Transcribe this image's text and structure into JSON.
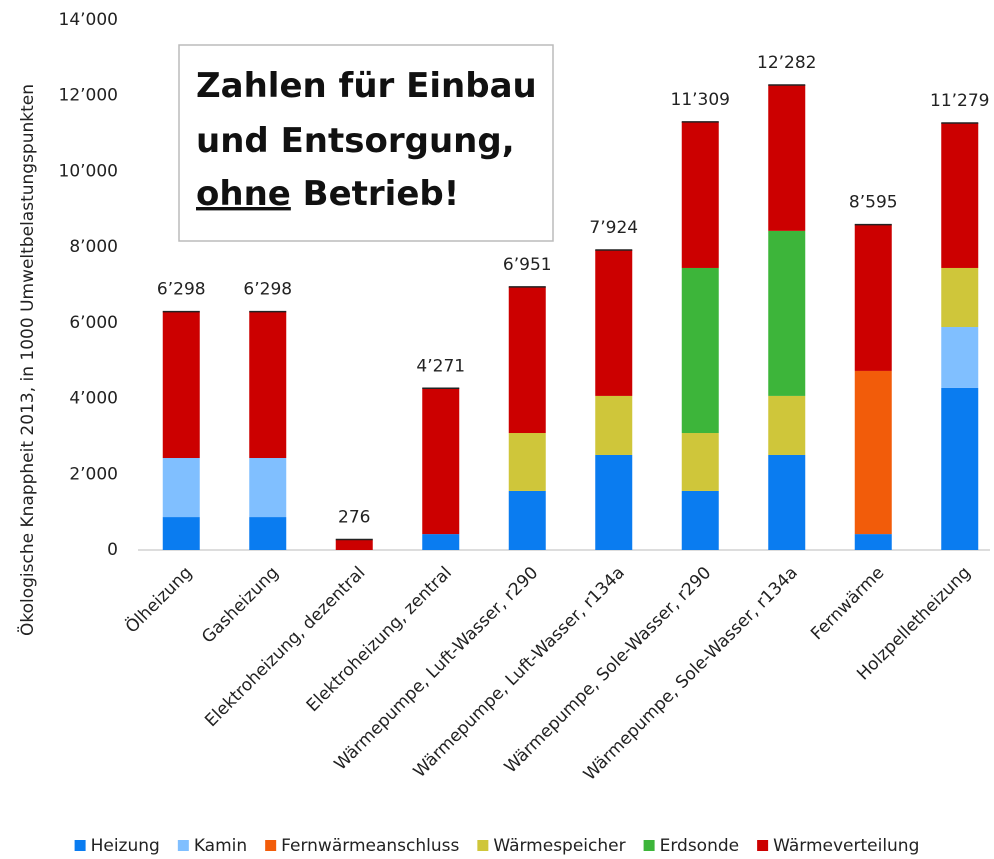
{
  "chart_data": {
    "type": "stacked_bar",
    "y_label": "Ökologische Knappheit 2013, in 1000 Umweltbelastungspunkten",
    "annotation": {
      "lines": [
        "Zahlen für Einbau",
        "und Entsorgung,"
      ],
      "underlined": "ohne",
      "rest": "Betrieb!"
    },
    "categories": [
      "Ölheizung",
      "Gasheizung",
      "Elektroheizung, dezentral",
      "Elektroheizung, zentral",
      "Wärmepumpe, Luft-Wasser, r290",
      "Wärmepumpe, Luft-Wasser, r134a",
      "Wärmepumpe, Sole-Wasser, r290",
      "Wärmepumpe, Sole-Wasser, r134a",
      "Fernwärme",
      "Holzpelletheizung"
    ],
    "series": [
      {
        "name": "Heizung",
        "color": "#0a7cf0",
        "values": [
          870,
          870,
          null,
          420,
          1560,
          2510,
          1560,
          2510,
          420,
          4280
        ]
      },
      {
        "name": "Kamin",
        "color": "#80bfff",
        "values": [
          1560,
          1560,
          null,
          null,
          null,
          null,
          null,
          null,
          null,
          1610
        ]
      },
      {
        "name": "Fernwärmeanschluss",
        "color": "#f25c0a",
        "values": [
          null,
          null,
          null,
          null,
          null,
          null,
          null,
          null,
          4310,
          null
        ]
      },
      {
        "name": "Wärmespeicher",
        "color": "#cfc63a",
        "values": [
          null,
          null,
          null,
          null,
          1530,
          1560,
          1530,
          1560,
          null,
          1560
        ]
      },
      {
        "name": "Erdsonde",
        "color": "#3db53a",
        "values": [
          null,
          null,
          null,
          null,
          null,
          null,
          4360,
          4360,
          null,
          null
        ]
      },
      {
        "name": "Wärmeverteilung",
        "color": "#cc0000",
        "values": [
          3868,
          3868,
          276,
          3851,
          3861,
          3854,
          3859,
          3852,
          3865,
          3829
        ]
      }
    ],
    "totals": [
      6298,
      6298,
      276,
      4271,
      6951,
      7924,
      11309,
      12282,
      8595,
      11279
    ],
    "total_labels": [
      "6’298",
      "6’298",
      "276",
      "4’271",
      "6’951",
      "7’924",
      "11’309",
      "12’282",
      "8’595",
      "11’279"
    ],
    "ylim": [
      0,
      14000
    ],
    "yticks": [
      0,
      {
        "value": 2000,
        "label": "2’000"
      },
      {
        "value": 4000,
        "label": "4’000"
      },
      {
        "value": 6000,
        "label": "6’000"
      },
      {
        "value": 8000,
        "label": "8’000"
      },
      {
        "value": 10000,
        "label": "10’000"
      },
      {
        "value": 12000,
        "label": "12’000"
      },
      {
        "value": 14000,
        "label": "14’000"
      }
    ],
    "grid": false
  }
}
